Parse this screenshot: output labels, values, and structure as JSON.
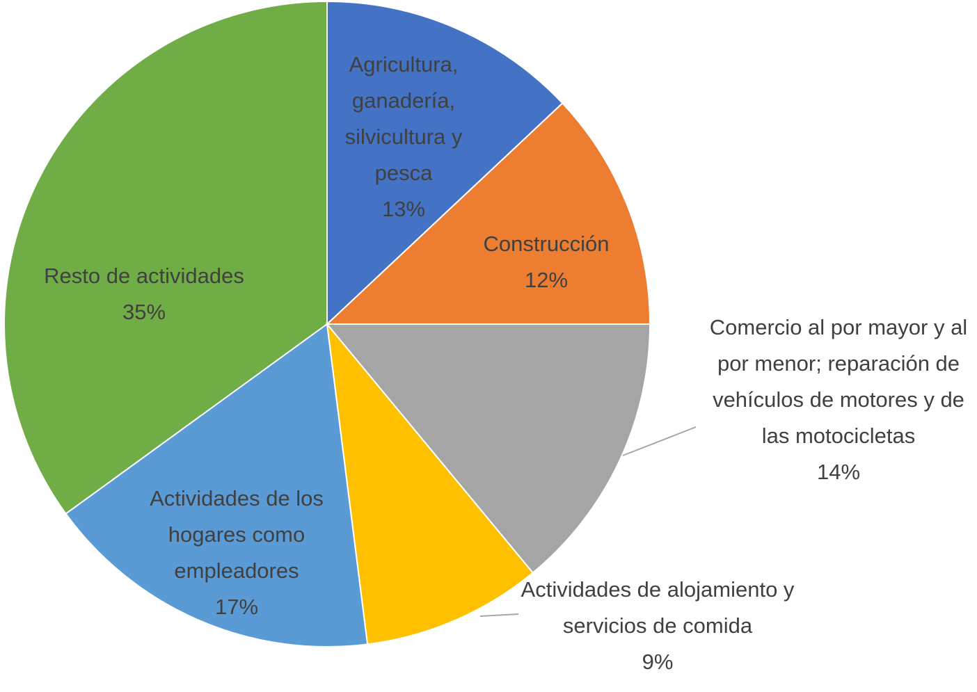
{
  "chart_data": {
    "type": "pie",
    "categories": [
      "Agricultura, ganadería, silvicultura y pesca",
      "Construcción",
      "Comercio al por mayor y al por menor; reparación de vehículos de motores y de las motocicletas",
      "Actividades de alojamiento y servicios de comida",
      "Actividades de los hogares como empleadores",
      "Resto de actividades"
    ],
    "values": [
      13,
      12,
      14,
      9,
      17,
      35
    ],
    "value_labels": [
      "13%",
      "12%",
      "14%",
      "9%",
      "17%",
      "35%"
    ],
    "colors": [
      "#4472c4",
      "#ed7d31",
      "#a5a5a5",
      "#ffc000",
      "#5b9bd5",
      "#70ad47"
    ]
  }
}
